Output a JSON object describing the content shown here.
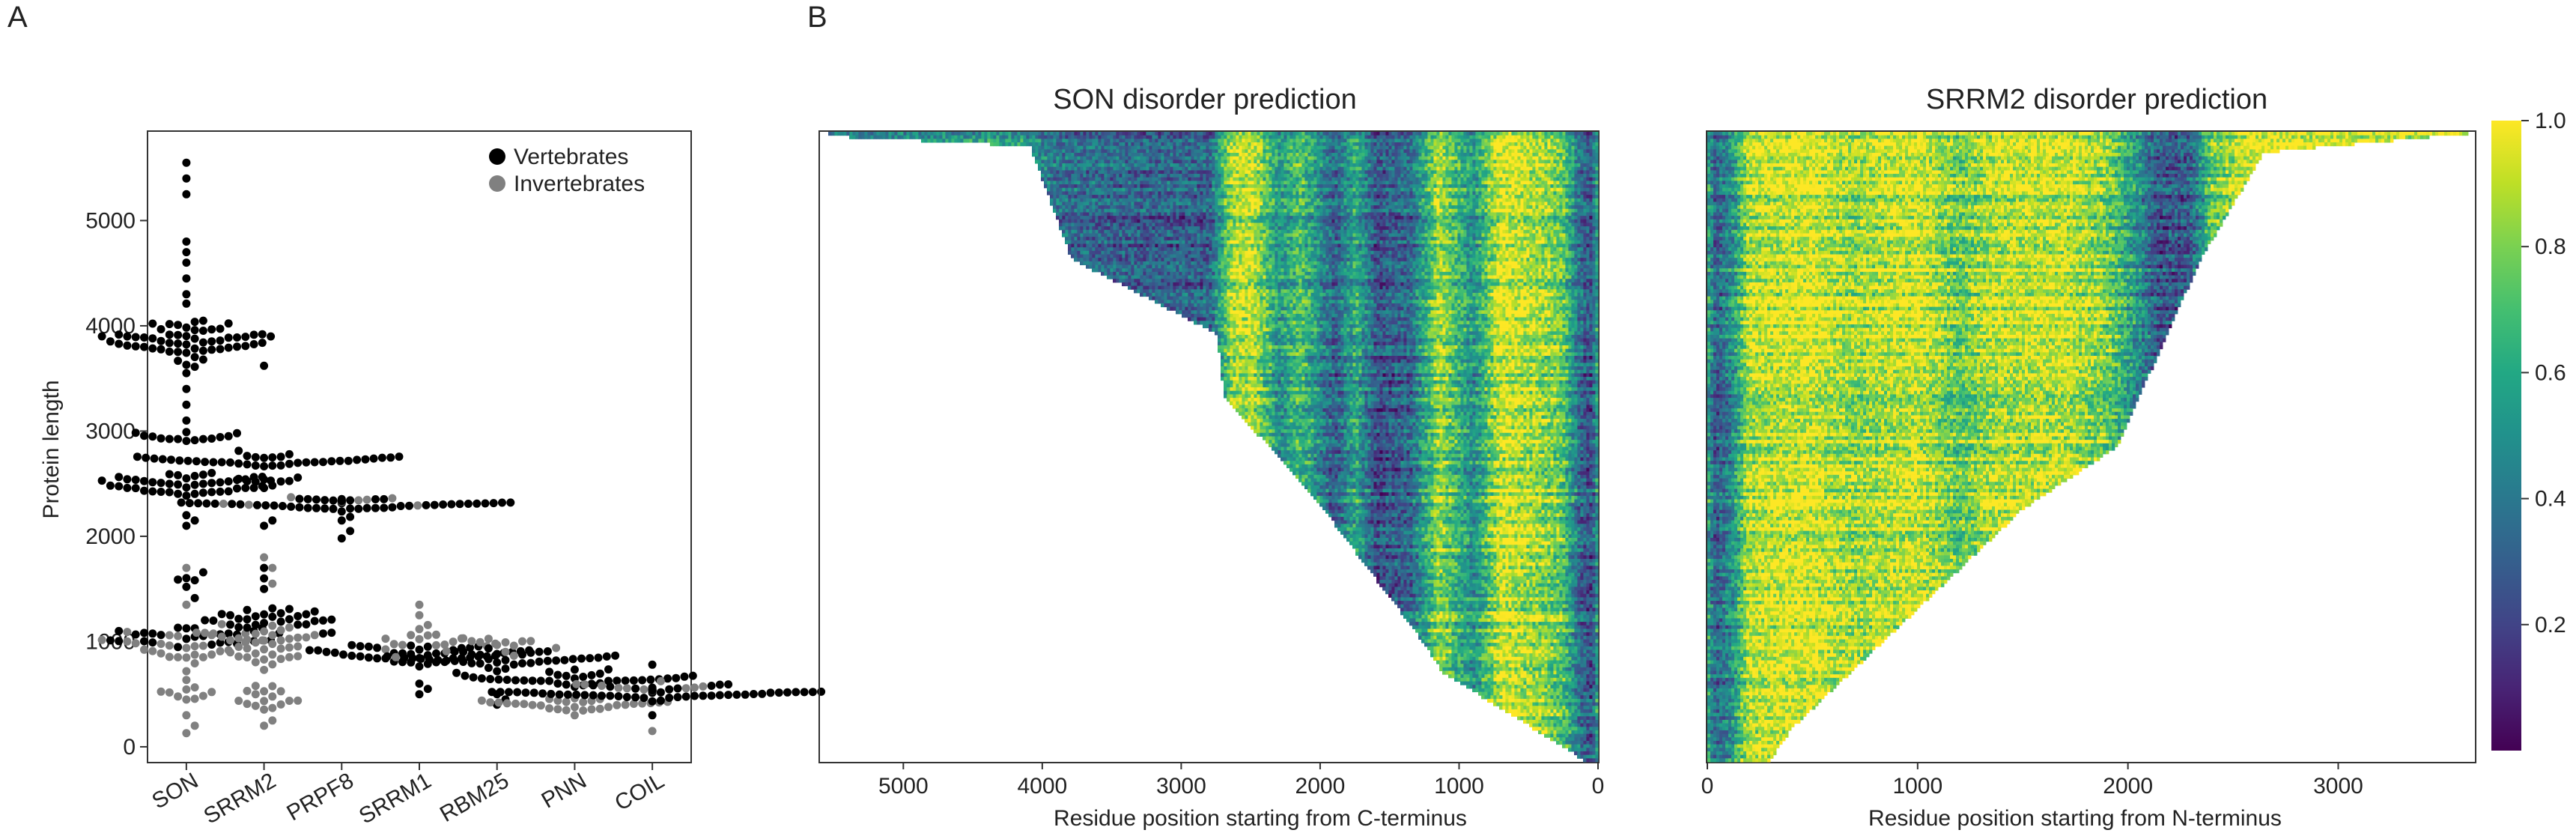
{
  "panels": {
    "a": {
      "letter": "A"
    },
    "b": {
      "letter": "B"
    }
  },
  "chart_data": [
    {
      "type": "scatter",
      "subtype": "swarm",
      "panel": "A",
      "ylabel": "Protein length",
      "xlabel": "",
      "ylim": [
        -150,
        5850
      ],
      "yticks": [
        0,
        1000,
        2000,
        3000,
        4000,
        5000
      ],
      "categories": [
        "SON",
        "SRRM2",
        "PRPF8",
        "SRRM1",
        "RBM25",
        "PNN",
        "COIL"
      ],
      "legend": {
        "position": "top-right",
        "entries": [
          {
            "name": "Vertebrates",
            "color": "#000000"
          },
          {
            "name": "Invertebrates",
            "color": "#808080"
          }
        ]
      },
      "series": [
        {
          "name": "Vertebrates",
          "color": "#000000",
          "groups": [
            {
              "category": "SON",
              "clusters": [
                {
                  "center": 3850,
                  "spread": 260,
                  "n": 60
                },
                {
                  "center": 2950,
                  "spread": 60,
                  "n": 14
                },
                {
                  "center": 2500,
                  "spread": 120,
                  "n": 45
                },
                {
                  "center": 1050,
                  "spread": 120,
                  "n": 28
                },
                {
                  "center": 1550,
                  "spread": 150,
                  "n": 6
                }
              ],
              "outliers": [
                5550,
                5400,
                5250,
                4800,
                4700,
                4600,
                4450,
                4300,
                3550,
                3400,
                3250,
                3100,
                2200,
                2150,
                2100
              ]
            },
            {
              "category": "SRRM2",
              "clusters": [
                {
                  "center": 2720,
                  "spread": 80,
                  "n": 40
                },
                {
                  "center": 2520,
                  "spread": 70,
                  "n": 8
                },
                {
                  "center": 1200,
                  "spread": 160,
                  "n": 30
                }
              ],
              "outliers": [
                3620,
                2150,
                2100,
                1700,
                1600,
                1500
              ]
            },
            {
              "category": "PRPF8",
              "clusters": [
                {
                  "center": 2310,
                  "spread": 60,
                  "n": 55
                }
              ],
              "outliers": [
                2150,
                2050,
                1980
              ]
            },
            {
              "category": "SRRM1",
              "clusters": [
                {
                  "center": 880,
                  "spread": 100,
                  "n": 45
                }
              ],
              "outliers": [
                600,
                550,
                500
              ]
            },
            {
              "category": "RBM25",
              "clusters": [
                {
                  "center": 830,
                  "spread": 90,
                  "n": 40
                }
              ],
              "outliers": [
                500,
                450,
                400
              ]
            },
            {
              "category": "PNN",
              "clusters": [
                {
                  "center": 640,
                  "spread": 80,
                  "n": 38
                }
              ],
              "outliers": []
            },
            {
              "category": "COIL",
              "clusters": [
                {
                  "center": 520,
                  "spread": 70,
                  "n": 70
                }
              ],
              "outliers": [
                780,
                300
              ]
            }
          ]
        },
        {
          "name": "Invertebrates",
          "color": "#808080",
          "groups": [
            {
              "category": "SON",
              "clusters": [
                {
                  "center": 950,
                  "spread": 180,
                  "n": 28
                },
                {
                  "center": 500,
                  "spread": 150,
                  "n": 10
                }
              ],
              "outliers": [
                1350,
                1700,
                300,
                200,
                130
              ]
            },
            {
              "category": "SRRM2",
              "clusters": [
                {
                  "center": 1000,
                  "spread": 250,
                  "n": 40
                },
                {
                  "center": 450,
                  "spread": 180,
                  "n": 16
                }
              ],
              "outliers": [
                1800,
                1700,
                1550,
                200,
                250
              ]
            },
            {
              "category": "PRPF8",
              "clusters": [
                {
                  "center": 2330,
                  "spread": 50,
                  "n": 12
                }
              ],
              "outliers": []
            },
            {
              "category": "SRRM1",
              "clusters": [
                {
                  "center": 1000,
                  "spread": 130,
                  "n": 16
                }
              ],
              "outliers": [
                1350,
                1250
              ]
            },
            {
              "category": "RBM25",
              "clusters": [
                {
                  "center": 950,
                  "spread": 90,
                  "n": 14
                }
              ],
              "outliers": []
            },
            {
              "category": "PNN",
              "clusters": [
                {
                  "center": 420,
                  "spread": 70,
                  "n": 30
                }
              ],
              "outliers": [
                300
              ]
            },
            {
              "category": "COIL",
              "clusters": [
                {
                  "center": 560,
                  "spread": 70,
                  "n": 12
                }
              ],
              "outliers": [
                150
              ]
            }
          ]
        }
      ]
    },
    {
      "type": "heatmap",
      "panel": "B",
      "title": "SON disorder prediction",
      "xlabel": "Residue position starting from C-terminus",
      "xlim": [
        5600,
        0
      ],
      "xticks": [
        5000,
        4000,
        3000,
        2000,
        1000,
        0
      ],
      "rows": 180,
      "layout_note": "rows are sequences sorted by length; each row filled from position 0 up to its length",
      "length_profile": [
        [
          0,
          5550
        ],
        [
          0.005,
          5450
        ],
        [
          0.02,
          4100
        ],
        [
          0.2,
          3800
        ],
        [
          0.32,
          2750
        ],
        [
          0.42,
          2700
        ],
        [
          0.58,
          2050
        ],
        [
          0.8,
          1300
        ],
        [
          0.86,
          1120
        ],
        [
          1,
          100
        ]
      ],
      "value_bands_by_position": [
        [
          0,
          0.6
        ],
        [
          50,
          0.25
        ],
        [
          130,
          0.35
        ],
        [
          260,
          0.75
        ],
        [
          420,
          0.85
        ],
        [
          700,
          0.95
        ],
        [
          900,
          0.5
        ],
        [
          1150,
          0.85
        ],
        [
          1350,
          0.35
        ],
        [
          1600,
          0.25
        ],
        [
          1750,
          0.6
        ],
        [
          1900,
          0.3
        ],
        [
          2150,
          0.7
        ],
        [
          2300,
          0.5
        ],
        [
          2500,
          0.9
        ],
        [
          2650,
          0.85
        ],
        [
          2800,
          0.3
        ],
        [
          3300,
          0.3
        ],
        [
          3900,
          0.35
        ],
        [
          4200,
          0.55
        ],
        [
          5600,
          0.5
        ]
      ],
      "colorscale": "viridis",
      "zlim": [
        0,
        1
      ]
    },
    {
      "type": "heatmap",
      "panel": "B",
      "title": "SRRM2 disorder prediction",
      "xlabel": "Residue position starting from N-terminus",
      "xlim": [
        0,
        3650
      ],
      "xticks": [
        0,
        1000,
        2000,
        3000
      ],
      "rows": 180,
      "layout_note": "rows are sequences sorted by length; each row filled from position 0 up to its length",
      "length_profile": [
        [
          0,
          3620
        ],
        [
          0.03,
          2650
        ],
        [
          0.2,
          2350
        ],
        [
          0.5,
          1950
        ],
        [
          0.6,
          1500
        ],
        [
          0.95,
          400
        ],
        [
          1,
          300
        ]
      ],
      "value_bands_by_position": [
        [
          0,
          0.6
        ],
        [
          40,
          0.3
        ],
        [
          120,
          0.5
        ],
        [
          200,
          0.9
        ],
        [
          500,
          0.95
        ],
        [
          700,
          0.85
        ],
        [
          1000,
          0.95
        ],
        [
          1200,
          0.75
        ],
        [
          1350,
          0.9
        ],
        [
          1700,
          0.92
        ],
        [
          1900,
          0.8
        ],
        [
          2050,
          0.5
        ],
        [
          2150,
          0.25
        ],
        [
          2300,
          0.3
        ],
        [
          2400,
          0.75
        ],
        [
          2600,
          0.95
        ],
        [
          3650,
          0.9
        ]
      ],
      "colorscale": "viridis",
      "zlim": [
        0,
        1
      ],
      "colorbar": {
        "ticks": [
          "0.2",
          "0.4",
          "0.6",
          "0.8",
          "1.0"
        ],
        "values": [
          0.2,
          0.4,
          0.6,
          0.8,
          1.0
        ]
      }
    }
  ]
}
